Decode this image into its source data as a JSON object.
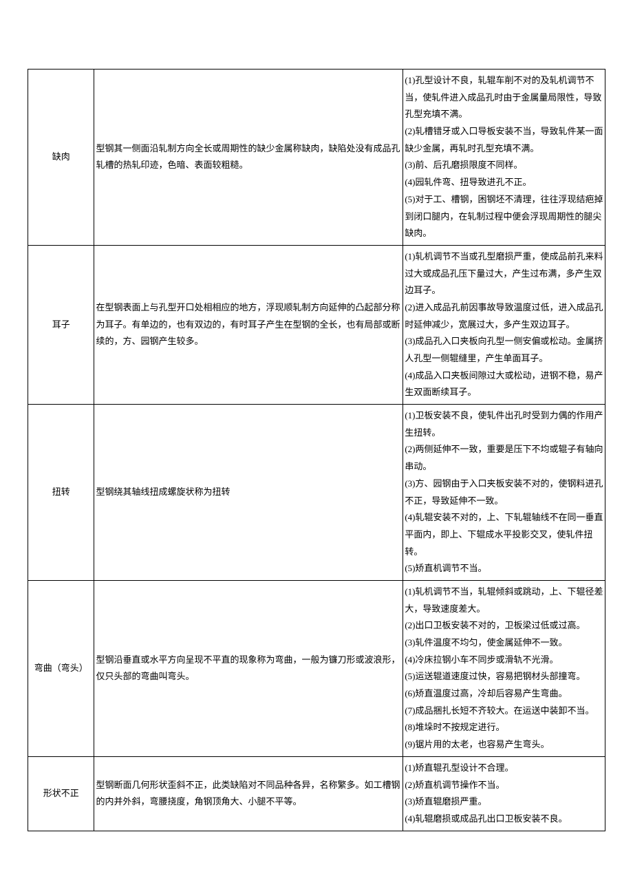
{
  "table": {
    "columns": {
      "name_width": "11.5%",
      "desc_width": "53.5%",
      "cause_width": "35%"
    },
    "styling": {
      "border_color": "#000000",
      "background_color": "#ffffff",
      "text_color": "#000000",
      "font_family": "SimSun",
      "font_size": 13,
      "line_height": 1.9
    },
    "rows": [
      {
        "name": "缺肉",
        "description": "型钢其一侧面沿轧制方向全长或周期性的缺少金属称缺肉，缺陷处没有成品孔轧槽的热轧印迹，色暗、表面较粗糙。",
        "causes": [
          "(1)孔型设计不良，轧辊车削不对的及轧机调节不当，使轧件进入成品孔时由于金属量局限性，导致孔型充填不满。",
          "(2)轧槽错牙或入口导板安装不当，导致轧件某一面缺少金属，再轧时孔型充填不满。",
          "(3)前、后孔磨损限度不同样。",
          "(4)园轧件弯、扭导致进孔不正。",
          "(5)对于工、槽钢，困钢坯不清理，往往浮现结疤掉到闭口腿内，在轧制过程中便会浮现周期性的腿尖缺肉。"
        ]
      },
      {
        "name": "耳子",
        "description": "在型钢表面上与孔型开口处相相应的地方，浮现顺轧制方向延伸的凸起部分称为耳子。有单边的，也有双边的，有时耳子产生在型钢的全长，也有局部或断续的，方、园钢产生较多。",
        "causes": [
          "(1)轧机调节不当或孔型磨损严重，使成品前孔来料过大或成品孔压下量过大，产生过布满，多产生双边耳子。",
          "(2)进入成品孔前因事故导致温度过低，进入成品孔时延伸减少，宽展过大，多产生双边耳子。",
          "(3)成品孔入口夹板向孔型一侧安偏或松动。金属挤人孔型一侧辊缝里，产生单面耳子。",
          "(4)成品入口夹板间隙过大或松动，进钢不稳，易产生双面断续耳子。"
        ]
      },
      {
        "name": "扭转",
        "description": "型钢绕其轴线扭成螺旋状称为扭转",
        "causes": [
          "(1)卫板安装不良，使轧件出孔时受到力偶的作用产生扭转。",
          "(2)两侧延伸不一致，重要是压下不均或辊子有轴向串动。",
          "(3)方、园钢由于入口夹板安装不对的，使钢料进孔不正，导致延伸不一致。",
          "(4)轧辊安装不对的，上、下轧辊轴线不在同一垂直平面内，即上、下辊成水平投影交叉，使轧件扭转。",
          "(5)矫直机调节不当。"
        ]
      },
      {
        "name": "弯曲（弯头）",
        "description": "型钢沿垂直或水平方向呈现不平直的现象称为弯曲，一般为镰刀形或波浪形，仅只头部的弯曲叫弯头。",
        "causes": [
          "(1)轧机调节不当，轧辊倾斜或跳动，上、下辊径差大，导致速度差大。",
          "(2)出口卫板安装不对的，卫板梁过低或过高。",
          "(3)轧件温度不均匀，使金属延伸不一致。",
          "(4)冷床拉钢小车不同步或滑轨不光滑。",
          "(5)运送辊道速度过快，容易把钢材头部撞弯。",
          "(6)矫直温度过高，冷却后容易产生弯曲。",
          "(7)成品捆扎长短不齐较大。在运送中装卸不当。",
          "(8)堆垛时不按规定进行。",
          "(9)锯片用的太老，也容易产生弯头。"
        ]
      },
      {
        "name": "形状不正",
        "description": "型钢断面几何形状歪斜不正，此类缺陷对不同品种各异，名称繁多。如工槽钢的内并外斜，弯腰挠度，角钢顶角大、小腿不平等。",
        "causes": [
          "(1)矫直辊孔型设计不合理。",
          "(2)矫直机调节操作不当。",
          "(3)矫直辊磨损严重。",
          "(4)轧辊磨损或成品孔出口卫板安装不良。"
        ]
      }
    ]
  }
}
